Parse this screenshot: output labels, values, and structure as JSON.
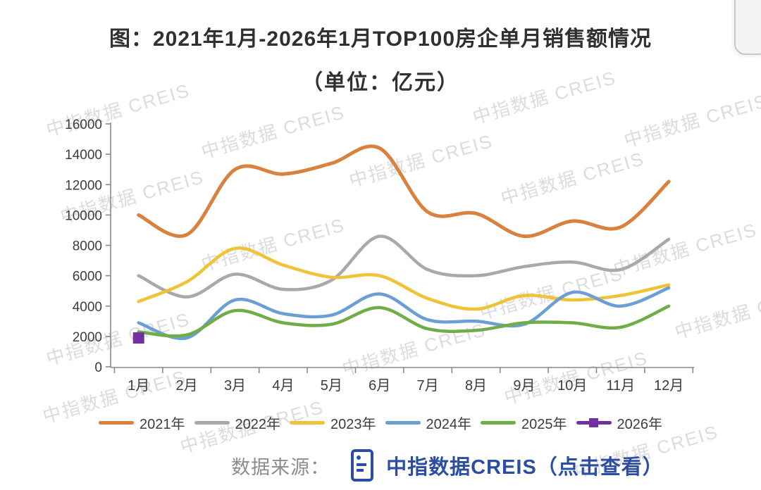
{
  "title": {
    "line1": "图：2021年1月-2026年1月TOP100房企单月销售额情况",
    "line2": "（单位：亿元）"
  },
  "watermark": {
    "text": "中指数据 CREIS"
  },
  "chart_data": {
    "type": "line",
    "title": "2021年1月-2026年1月TOP100房企单月销售额情况",
    "unit": "亿元",
    "categories": [
      "1月",
      "2月",
      "3月",
      "4月",
      "5月",
      "6月",
      "7月",
      "8月",
      "9月",
      "10月",
      "11月",
      "12月"
    ],
    "series": [
      {
        "name": "2021年",
        "color": "#D9813E",
        "width": 5,
        "values": [
          10000,
          8700,
          13000,
          12700,
          13400,
          14400,
          10200,
          10100,
          8600,
          9600,
          9200,
          12200
        ]
      },
      {
        "name": "2022年",
        "color": "#A9A9A9",
        "width": 4.5,
        "values": [
          6000,
          4600,
          6100,
          5100,
          5700,
          8600,
          6400,
          6000,
          6600,
          6900,
          6400,
          8400
        ]
      },
      {
        "name": "2023年",
        "color": "#EFC335",
        "width": 4.5,
        "values": [
          4300,
          5600,
          7800,
          6700,
          5900,
          6000,
          4500,
          3800,
          4700,
          4400,
          4700,
          5400
        ]
      },
      {
        "name": "2024年",
        "color": "#6B9FD4",
        "width": 4.5,
        "values": [
          2900,
          1900,
          4400,
          3500,
          3400,
          4800,
          3100,
          3000,
          2800,
          4900,
          4000,
          5200
        ]
      },
      {
        "name": "2025年",
        "color": "#70AD47",
        "width": 4.5,
        "values": [
          2300,
          2100,
          3700,
          2900,
          2800,
          3900,
          2500,
          2400,
          2900,
          2900,
          2600,
          4000
        ]
      },
      {
        "name": "2026年",
        "color": "#7030A0",
        "width": 4.5,
        "marker": "square",
        "values": [
          1900
        ]
      }
    ],
    "ylim": [
      0,
      16000
    ],
    "ytick_step": 2000,
    "grid": false,
    "legend_position": "bottom"
  },
  "source": {
    "label": "数据来源：",
    "icon": "document-list-icon",
    "link_text": "中指数据CREIS（点击查看）"
  }
}
